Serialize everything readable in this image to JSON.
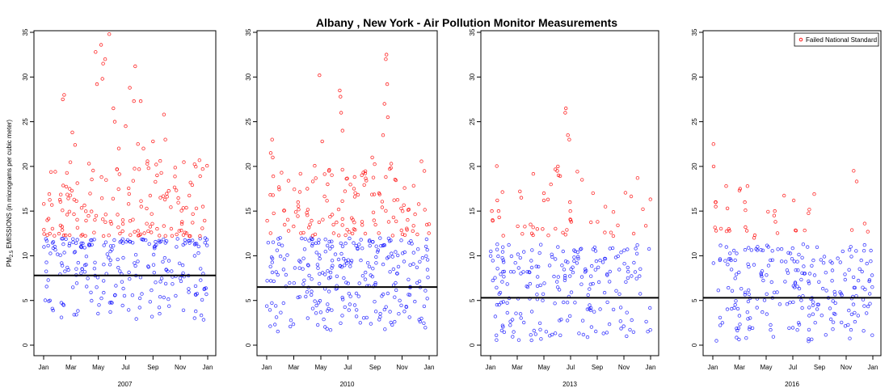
{
  "chart_data": {
    "type": "scatter",
    "title": "Albany , New York - Air Pollution Monitor Measurements",
    "ylabel_main": "PM",
    "ylabel_sub": "2.5",
    "ylabel_rest": " EMISSIONS (in micrograms per cubic meter)",
    "ylim": [
      0,
      35
    ],
    "yticks": [
      "0",
      "5",
      "10",
      "15",
      "20",
      "25",
      "30",
      "35"
    ],
    "xticks": [
      "Jan",
      "Mar",
      "May",
      "Jul",
      "Sep",
      "Nov",
      "Jan"
    ],
    "legend": {
      "label": "Failed National Standard",
      "position": "top-right",
      "panel": 3
    },
    "colors": {
      "failed": "#ff0000",
      "passed": "#0000ff",
      "standard_line": "#000000"
    },
    "panels": [
      {
        "year": "2007",
        "standard_line": 7.8,
        "seed": 7,
        "n_low": 230,
        "n_high": 160,
        "peaks": [
          [
            1.4,
            27.5
          ],
          [
            1.5,
            28.0
          ],
          [
            2.1,
            23.8
          ],
          [
            2.3,
            22.4
          ],
          [
            3.8,
            32.8
          ],
          [
            3.9,
            29.2
          ],
          [
            4.2,
            33.6
          ],
          [
            4.35,
            31.5
          ],
          [
            4.5,
            32.0
          ],
          [
            4.3,
            29.8
          ],
          [
            4.8,
            34.8
          ],
          [
            5.1,
            26.5
          ],
          [
            5.2,
            25.0
          ],
          [
            5.5,
            22.0
          ],
          [
            6.0,
            24.5
          ],
          [
            6.3,
            28.8
          ],
          [
            6.6,
            27.3
          ],
          [
            6.7,
            31.2
          ],
          [
            6.9,
            22.5
          ],
          [
            7.1,
            27.3
          ],
          [
            7.3,
            22.0
          ],
          [
            8.0,
            22.8
          ],
          [
            8.3,
            19.0
          ],
          [
            8.8,
            25.8
          ],
          [
            8.9,
            23.0
          ]
        ]
      },
      {
        "year": "2010",
        "standard_line": 6.5,
        "seed": 11,
        "n_low": 270,
        "n_high": 130,
        "peaks": [
          [
            0.3,
            21.5
          ],
          [
            0.4,
            23.0
          ],
          [
            0.45,
            21.0
          ],
          [
            3.0,
            17.5
          ],
          [
            3.2,
            13.5
          ],
          [
            3.9,
            30.2
          ],
          [
            4.1,
            22.8
          ],
          [
            4.5,
            18.0
          ],
          [
            4.6,
            19.5
          ],
          [
            5.4,
            28.5
          ],
          [
            5.45,
            27.8
          ],
          [
            5.5,
            26.0
          ],
          [
            5.6,
            24.0
          ],
          [
            7.8,
            21.0
          ],
          [
            8.3,
            17.0
          ],
          [
            8.6,
            23.5
          ],
          [
            8.7,
            27.0
          ],
          [
            8.8,
            32.0
          ],
          [
            8.85,
            32.5
          ],
          [
            8.9,
            29.2
          ],
          [
            8.95,
            25.5
          ]
        ]
      },
      {
        "year": "2013",
        "standard_line": 5.3,
        "seed": 23,
        "n_low": 220,
        "n_high": 38,
        "peaks": [
          [
            0.1,
            15.0
          ],
          [
            0.15,
            14.0
          ],
          [
            0.5,
            16.2
          ],
          [
            0.6,
            15.0
          ],
          [
            0.65,
            14.3
          ],
          [
            2.2,
            17.2
          ],
          [
            2.3,
            16.5
          ],
          [
            3.0,
            13.5
          ],
          [
            3.1,
            12.5
          ],
          [
            3.5,
            13.0
          ],
          [
            3.9,
            13.0
          ],
          [
            4.0,
            17.0
          ],
          [
            4.0,
            16.2
          ],
          [
            4.3,
            16.3
          ],
          [
            5.0,
            19.5
          ],
          [
            5.05,
            20.0
          ],
          [
            5.1,
            19.0
          ],
          [
            5.6,
            26.0
          ],
          [
            5.65,
            26.5
          ],
          [
            5.8,
            23.5
          ],
          [
            5.9,
            23.0
          ],
          [
            5.95,
            16.0
          ],
          [
            6.0,
            14.0
          ],
          [
            6.05,
            13.8
          ]
        ]
      },
      {
        "year": "2016",
        "standard_line": 5.3,
        "seed": 31,
        "n_low": 230,
        "n_high": 20,
        "peaks": [
          [
            0.05,
            22.5
          ],
          [
            0.06,
            20.0
          ],
          [
            0.2,
            16.0
          ],
          [
            0.22,
            15.5
          ],
          [
            0.25,
            12.8
          ],
          [
            1.0,
            17.8
          ],
          [
            1.1,
            15.3
          ],
          [
            1.2,
            13.0
          ],
          [
            1.25,
            12.8
          ],
          [
            2.0,
            17.3
          ],
          [
            2.05,
            17.5
          ],
          [
            2.4,
            16.0
          ],
          [
            2.45,
            13.2
          ],
          [
            2.55,
            12.8
          ],
          [
            2.6,
            17.8
          ],
          [
            3.1,
            12.0
          ],
          [
            3.15,
            12.3
          ],
          [
            4.6,
            14.5
          ],
          [
            4.65,
            15.0
          ],
          [
            4.7,
            13.8
          ]
        ]
      }
    ]
  }
}
